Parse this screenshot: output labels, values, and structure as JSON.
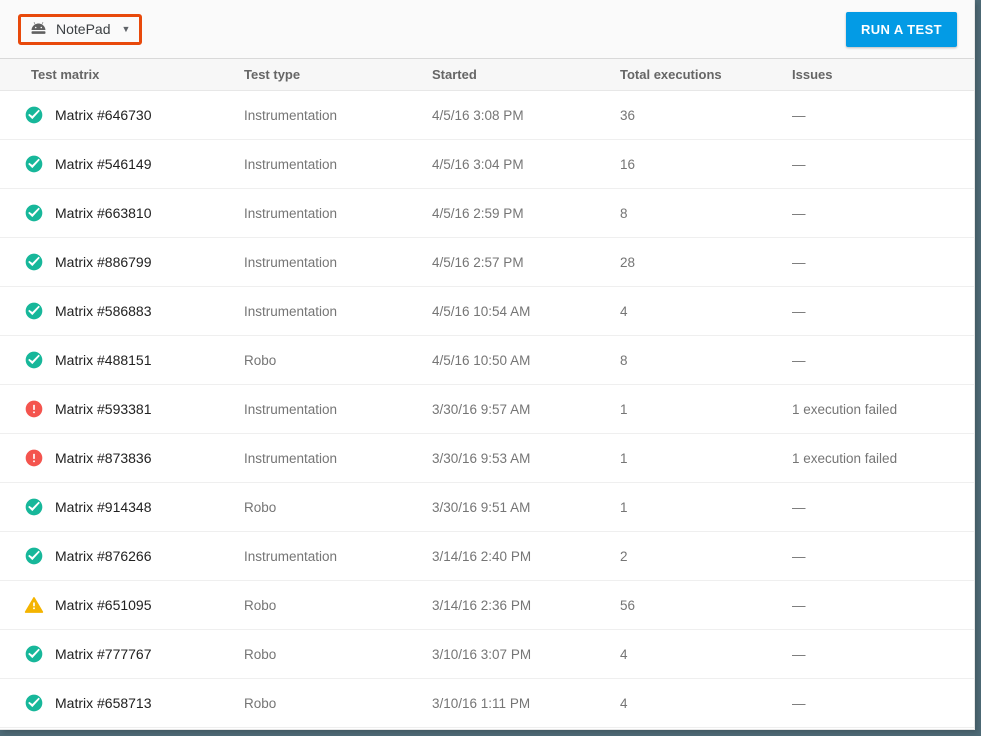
{
  "frame": {
    "border_color": "#4e6a76"
  },
  "toolbar": {
    "app_selector": {
      "label": "NotePad",
      "icon": "android-icon",
      "annotation_color": "#e8490b"
    },
    "run_test_label": "RUN A TEST",
    "run_test_color": "#039be5"
  },
  "status_colors": {
    "success": "#17b79a",
    "error": "#f4544e",
    "warning": "#f4b400"
  },
  "table": {
    "columns": [
      "Test matrix",
      "Test type",
      "Started",
      "Total executions",
      "Issues"
    ],
    "rows": [
      {
        "status": "success",
        "name": "Matrix #646730",
        "type": "Instrumentation",
        "started": "4/5/16 3:08 PM",
        "executions": "36",
        "issues": "—"
      },
      {
        "status": "success",
        "name": "Matrix #546149",
        "type": "Instrumentation",
        "started": "4/5/16 3:04 PM",
        "executions": "16",
        "issues": "—"
      },
      {
        "status": "success",
        "name": "Matrix #663810",
        "type": "Instrumentation",
        "started": "4/5/16 2:59 PM",
        "executions": "8",
        "issues": "—"
      },
      {
        "status": "success",
        "name": "Matrix #886799",
        "type": "Instrumentation",
        "started": "4/5/16 2:57 PM",
        "executions": "28",
        "issues": "—"
      },
      {
        "status": "success",
        "name": "Matrix #586883",
        "type": "Instrumentation",
        "started": "4/5/16 10:54 AM",
        "executions": "4",
        "issues": "—"
      },
      {
        "status": "success",
        "name": "Matrix #488151",
        "type": "Robo",
        "started": "4/5/16 10:50 AM",
        "executions": "8",
        "issues": "—"
      },
      {
        "status": "error",
        "name": "Matrix #593381",
        "type": "Instrumentation",
        "started": "3/30/16 9:57 AM",
        "executions": "1",
        "issues": "1 execution failed"
      },
      {
        "status": "error",
        "name": "Matrix #873836",
        "type": "Instrumentation",
        "started": "3/30/16 9:53 AM",
        "executions": "1",
        "issues": "1 execution failed"
      },
      {
        "status": "success",
        "name": "Matrix #914348",
        "type": "Robo",
        "started": "3/30/16 9:51 AM",
        "executions": "1",
        "issues": "—"
      },
      {
        "status": "success",
        "name": "Matrix #876266",
        "type": "Instrumentation",
        "started": "3/14/16 2:40 PM",
        "executions": "2",
        "issues": "—"
      },
      {
        "status": "warning",
        "name": "Matrix #651095",
        "type": "Robo",
        "started": "3/14/16 2:36 PM",
        "executions": "56",
        "issues": "—"
      },
      {
        "status": "success",
        "name": "Matrix #777767",
        "type": "Robo",
        "started": "3/10/16 3:07 PM",
        "executions": "4",
        "issues": "—"
      },
      {
        "status": "success",
        "name": "Matrix #658713",
        "type": "Robo",
        "started": "3/10/16 1:11 PM",
        "executions": "4",
        "issues": "—"
      }
    ]
  }
}
